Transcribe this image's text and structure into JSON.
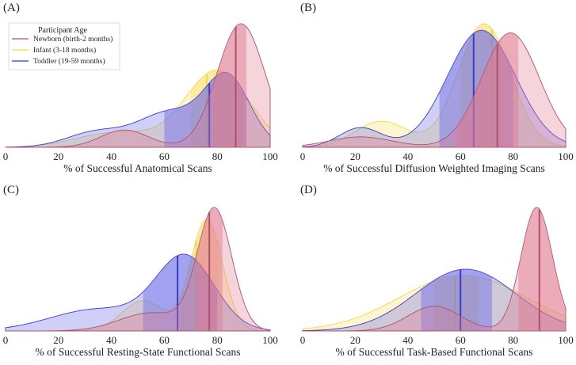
{
  "legend": {
    "title": "Participant Age",
    "placement": "top-left of panel A",
    "entries": [
      {
        "key": "newborn",
        "label": "Newborn (birth-2 months)",
        "color": "#b0506a",
        "fill": "#e07a90"
      },
      {
        "key": "infant",
        "label": "Infant (3-18 months)",
        "color": "#f2d94a",
        "fill": "#ffe066"
      },
      {
        "key": "toddler",
        "label": "Toddler (19-59 months)",
        "color": "#3a3ad0",
        "fill": "#6a6ae8"
      }
    ]
  },
  "chart_data": [
    {
      "type": "area",
      "panel": "(A)",
      "xlabel": "% of Successful Anatomical Scans",
      "xlim": [
        0,
        100
      ],
      "xticks": [
        "0",
        "20",
        "40",
        "60",
        "80",
        "100"
      ],
      "series": [
        {
          "name": "newborn",
          "components": [
            [
              89,
              9,
              1.0
            ],
            [
              45,
              9,
              0.14
            ]
          ],
          "median": 87,
          "iqr": [
            78,
            91
          ]
        },
        {
          "name": "infant",
          "components": [
            [
              80,
              12,
              0.62
            ],
            [
              42,
              15,
              0.12
            ]
          ],
          "median": 76,
          "iqr": [
            70,
            90
          ]
        },
        {
          "name": "toddler",
          "components": [
            [
              84,
              8.5,
              0.55
            ],
            [
              62,
              12,
              0.28
            ],
            [
              34,
              11,
              0.12
            ]
          ],
          "median": 77,
          "iqr": [
            60,
            91
          ]
        }
      ]
    },
    {
      "type": "area",
      "panel": "(B)",
      "xlabel": "% of Successful Diffusion Weighted Imaging Scans",
      "xlim": [
        0,
        100
      ],
      "xticks": [
        "0",
        "20",
        "40",
        "60",
        "80",
        "100"
      ],
      "series": [
        {
          "name": "newborn",
          "components": [
            [
              79,
              11,
              0.88
            ],
            [
              22,
              12,
              0.08
            ]
          ],
          "median": 74,
          "iqr": [
            58,
            82
          ]
        },
        {
          "name": "infant",
          "components": [
            [
              69,
              10,
              0.95
            ],
            [
              30,
              10,
              0.2
            ]
          ],
          "median": 72,
          "iqr": [
            60,
            76
          ]
        },
        {
          "name": "toddler",
          "components": [
            [
              68,
              13,
              0.9
            ],
            [
              22,
              8,
              0.15
            ]
          ],
          "median": 65,
          "iqr": [
            52,
            80
          ]
        }
      ]
    },
    {
      "type": "area",
      "panel": "(C)",
      "xlabel": "% of Successful Resting-State Functional Scans",
      "xlim": [
        0,
        100
      ],
      "xticks": [
        "0",
        "20",
        "40",
        "60",
        "80",
        "100"
      ],
      "series": [
        {
          "name": "newborn",
          "components": [
            [
              79,
              6.5,
              1.0
            ],
            [
              55,
              12,
              0.15
            ]
          ],
          "median": 77,
          "iqr": [
            72,
            82
          ]
        },
        {
          "name": "infant",
          "components": [
            [
              76,
              6,
              0.92
            ],
            [
              52,
              8,
              0.25
            ]
          ],
          "median": 72,
          "iqr": [
            66,
            80
          ]
        },
        {
          "name": "toddler",
          "components": [
            [
              68,
              11,
              0.6
            ],
            [
              35,
              18,
              0.18
            ]
          ],
          "median": 65,
          "iqr": [
            52,
            80
          ]
        }
      ]
    },
    {
      "type": "area",
      "panel": "(D)",
      "xlabel": "% of Successful Task-Based Functional Scans",
      "xlim": [
        0,
        100
      ],
      "xticks": [
        "0",
        "20",
        "40",
        "60",
        "80",
        "100"
      ],
      "series": [
        {
          "name": "newborn",
          "components": [
            [
              89,
              6,
              1.0
            ],
            [
              50,
              10,
              0.2
            ]
          ],
          "median": 90,
          "iqr": [
            82,
            100
          ]
        },
        {
          "name": "infant",
          "components": [
            [
              61,
              24,
              0.45
            ]
          ],
          "median": 58,
          "iqr": [
            50,
            67
          ]
        },
        {
          "name": "toddler",
          "components": [
            [
              62,
              19,
              0.5
            ]
          ],
          "median": 60,
          "iqr": [
            45,
            72
          ]
        }
      ]
    }
  ]
}
